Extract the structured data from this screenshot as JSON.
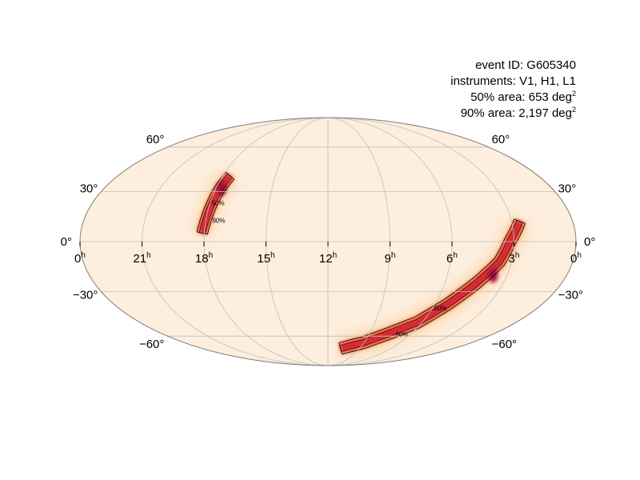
{
  "chart_data": {
    "type": "heatmap",
    "projection": "mollweide",
    "title": "",
    "annotations": {
      "event_id": "event ID: G605340",
      "instruments": "instruments: V1, H1, L1",
      "area50_text": "50% area: 653 deg",
      "area90_text": "90% area: 2,197 deg",
      "area_unit_power": "2"
    },
    "ra_ticks": [
      {
        "hour": 24,
        "text": "0",
        "unit": "h"
      },
      {
        "hour": 21,
        "text": "21",
        "unit": "h"
      },
      {
        "hour": 18,
        "text": "18",
        "unit": "h"
      },
      {
        "hour": 15,
        "text": "15",
        "unit": "h"
      },
      {
        "hour": 12,
        "text": "12",
        "unit": "h"
      },
      {
        "hour": 9,
        "text": "9",
        "unit": "h"
      },
      {
        "hour": 6,
        "text": "6",
        "unit": "h"
      },
      {
        "hour": 3,
        "text": "3",
        "unit": "h"
      },
      {
        "hour": 0,
        "text": "0",
        "unit": "h"
      }
    ],
    "dec_ticks": [
      {
        "dec": 60,
        "left": "60°",
        "right": "60°"
      },
      {
        "dec": 30,
        "left": "30°",
        "right": "30°"
      },
      {
        "dec": 0,
        "left": "0°",
        "right": "0°"
      },
      {
        "dec": -30,
        "left": "−30°",
        "right": "−30°"
      },
      {
        "dec": -60,
        "left": "−60°",
        "right": "−60°"
      }
    ],
    "contour_labels": {
      "c50": "50%",
      "c90": "90%"
    },
    "grid": true,
    "colors": {
      "background": "#fdeedd",
      "low": "#fdd0a2",
      "mid": "#f4642b",
      "high": "#d41a3a",
      "peak": "#a8093c",
      "border": "#808080",
      "grid": "#c0c0c0"
    },
    "regions": [
      {
        "name": "north lobe",
        "centerline": [
          [
            17.6,
            40
          ],
          [
            17.8,
            31
          ],
          [
            17.9,
            22
          ],
          [
            18.0,
            13
          ],
          [
            18.1,
            5
          ]
        ],
        "contour90_halfwidth_deg": 2.0,
        "contour50_halfwidth_deg": 1.1,
        "peak": [
          17.7,
          32
        ]
      },
      {
        "name": "south arc",
        "centerline": [
          [
            2.6,
            12
          ],
          [
            3.2,
            0
          ],
          [
            3.6,
            -12
          ],
          [
            4.4,
            -25
          ],
          [
            5.3,
            -38
          ],
          [
            6.3,
            -50
          ],
          [
            7.6,
            -58
          ],
          [
            9.0,
            -65
          ],
          [
            10.8,
            -70
          ]
        ],
        "contour90_halfwidth_deg": 2.2,
        "contour50_halfwidth_deg": 1.1,
        "peak": [
          3.7,
          -20
        ]
      }
    ]
  }
}
